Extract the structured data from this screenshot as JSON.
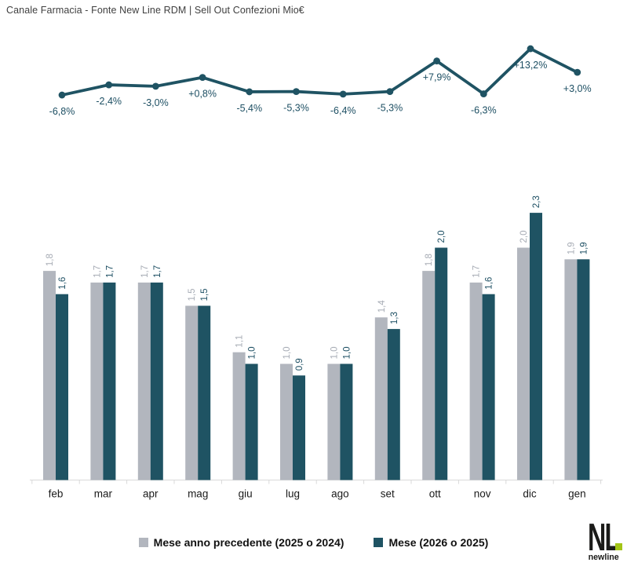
{
  "title": "Canale Farmacia - Fonte New Line RDM | Sell Out Confezioni Mio€",
  "colors": {
    "teal": "#1f5363",
    "gray": "#b2b6be",
    "gray_label": "#a7acb5",
    "teal_label": "#1d4f63",
    "axis": "#d9d9d9",
    "month_label": "#1a1a1a",
    "title_text": "#3f3f3f",
    "logo_green": "#a3c516"
  },
  "chart_data": [
    {
      "type": "line",
      "name": "variazione-percentuale",
      "categories": [
        "feb",
        "mar",
        "apr",
        "mag",
        "giu",
        "lug",
        "ago",
        "set",
        "ott",
        "nov",
        "dic",
        "gen"
      ],
      "values": [
        -6.8,
        -2.4,
        -3.0,
        0.8,
        -5.4,
        -5.3,
        -6.4,
        -5.3,
        7.9,
        -6.3,
        13.2,
        3.0
      ],
      "labels": [
        "-6,8%",
        "-2,4%",
        "-3,0%",
        "+0,8%",
        "-5,4%",
        "-5,3%",
        "-6,4%",
        "-5,3%",
        "+7,9%",
        "-6,3%",
        "+13,2%",
        "+3,0%"
      ],
      "ylim": [
        -10,
        16
      ],
      "grid": false,
      "legend_position": "none"
    },
    {
      "type": "bar",
      "categories": [
        "feb",
        "mar",
        "apr",
        "mag",
        "giu",
        "lug",
        "ago",
        "set",
        "ott",
        "nov",
        "dic",
        "gen"
      ],
      "series": [
        {
          "name": "Mese anno precedente (2025 o 2024)",
          "color": "#b2b6be",
          "values": [
            1.8,
            1.7,
            1.7,
            1.5,
            1.1,
            1.0,
            1.0,
            1.4,
            1.8,
            1.7,
            2.0,
            1.9
          ],
          "labels": [
            "1,8",
            "1,7",
            "1,7",
            "1,5",
            "1,1",
            "1,0",
            "1,0",
            "1,4",
            "1,8",
            "1,7",
            "2,0",
            "1,9"
          ]
        },
        {
          "name": "Mese (2026 o 2025)",
          "color": "#1f5363",
          "values": [
            1.6,
            1.7,
            1.7,
            1.5,
            1.0,
            0.9,
            1.0,
            1.3,
            2.0,
            1.6,
            2.3,
            1.9
          ],
          "labels": [
            "1,6",
            "1,7",
            "1,7",
            "1,5",
            "1,0",
            "0,9",
            "1,0",
            "1,3",
            "2,0",
            "1,6",
            "2,3",
            "1,9"
          ]
        }
      ],
      "ylim": [
        0,
        2.5
      ],
      "grid": false,
      "legend_position": "bottom"
    }
  ],
  "legend": {
    "items": [
      {
        "label": "Mese anno precedente (2025 o 2024)",
        "color": "#b2b6be"
      },
      {
        "label": "Mese (2026 o 2025)",
        "color": "#1f5363"
      }
    ]
  },
  "logo": {
    "monogram": "NL",
    "wordmark": "newline"
  }
}
